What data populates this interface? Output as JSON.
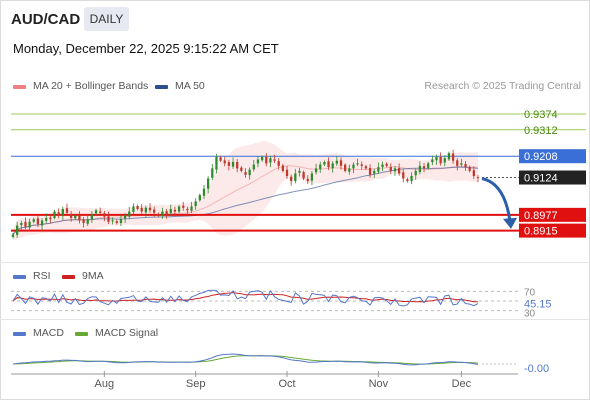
{
  "header": {
    "symbol": "AUD/CAD",
    "period": "DAILY",
    "datetime": "Monday, December 22, 2025 9:15:22 AM CET",
    "credit": "Research © 2025 Trading Central"
  },
  "legend": {
    "bb_label": "MA 20 + Bollinger Bands",
    "ma50_label": "MA 50",
    "rsi_label": "RSI",
    "rsi_ma_label": "9MA",
    "macd_label": "MACD",
    "macd_signal_label": "MACD Signal"
  },
  "colors": {
    "bb": "#f08080",
    "ma50": "#2c4f8f",
    "resistance": "#9acd55",
    "pivot": "#3a6fd8",
    "support": "#e01010",
    "price_tag": "#222222",
    "arrow": "#2c5fa8",
    "rsi": "#5577cc",
    "rsi_ma": "#cc2222",
    "macd": "#5577cc",
    "macd_signal": "#66aa33",
    "up_candle": "#2e8b2e",
    "down_candle": "#c0392b"
  },
  "chart_data": {
    "type": "candlestick",
    "x_ticks": [
      "Aug",
      "Sep",
      "Oct",
      "Nov",
      "Dec"
    ],
    "ylim": [
      0.8815,
      0.9445
    ],
    "levels": [
      {
        "name": "resistance-2",
        "value": 0.9374,
        "label": "0.9374",
        "kind": "resistance"
      },
      {
        "name": "resistance-1",
        "value": 0.9312,
        "label": "0.9312",
        "kind": "resistance"
      },
      {
        "name": "pivot",
        "value": 0.9208,
        "label": "0.9208",
        "kind": "pivot"
      },
      {
        "name": "last-price",
        "value": 0.9124,
        "label": "0.9124",
        "kind": "price"
      },
      {
        "name": "support-1",
        "value": 0.8977,
        "label": "0.8977",
        "kind": "support"
      },
      {
        "name": "support-2",
        "value": 0.8915,
        "label": "0.8915",
        "kind": "support"
      }
    ],
    "close": [
      0.89,
      0.8935,
      0.8945,
      0.893,
      0.895,
      0.896,
      0.894,
      0.8955,
      0.8965,
      0.896,
      0.899,
      0.8975,
      0.9,
      0.8985,
      0.8965,
      0.8975,
      0.8955,
      0.8945,
      0.896,
      0.898,
      0.8995,
      0.8985,
      0.897,
      0.895,
      0.8955,
      0.8945,
      0.896,
      0.8975,
      0.899,
      0.901,
      0.9,
      0.899,
      0.9005,
      0.8995,
      0.8985,
      0.8975,
      0.899,
      0.898,
      0.9,
      0.899,
      0.901,
      0.9005,
      0.8995,
      0.901,
      0.903,
      0.9055,
      0.908,
      0.912,
      0.916,
      0.9205,
      0.919,
      0.918,
      0.917,
      0.9185,
      0.916,
      0.915,
      0.9135,
      0.9155,
      0.9175,
      0.9195,
      0.9205,
      0.918,
      0.92,
      0.919,
      0.917,
      0.915,
      0.913,
      0.911,
      0.914,
      0.915,
      0.912,
      0.911,
      0.914,
      0.916,
      0.9175,
      0.9185,
      0.9165,
      0.918,
      0.919,
      0.917,
      0.915,
      0.916,
      0.9175,
      0.918,
      0.917,
      0.916,
      0.9135,
      0.915,
      0.9165,
      0.9175,
      0.917,
      0.915,
      0.916,
      0.914,
      0.912,
      0.911,
      0.913,
      0.915,
      0.917,
      0.916,
      0.918,
      0.9195,
      0.9205,
      0.918,
      0.92,
      0.922,
      0.919,
      0.917,
      0.918,
      0.9165,
      0.915,
      0.913,
      0.9124
    ],
    "rsi": {
      "levels": [
        70,
        50,
        30
      ],
      "last_rsi": "45.15"
    },
    "macd": {
      "last_macd": "-0.00"
    }
  }
}
